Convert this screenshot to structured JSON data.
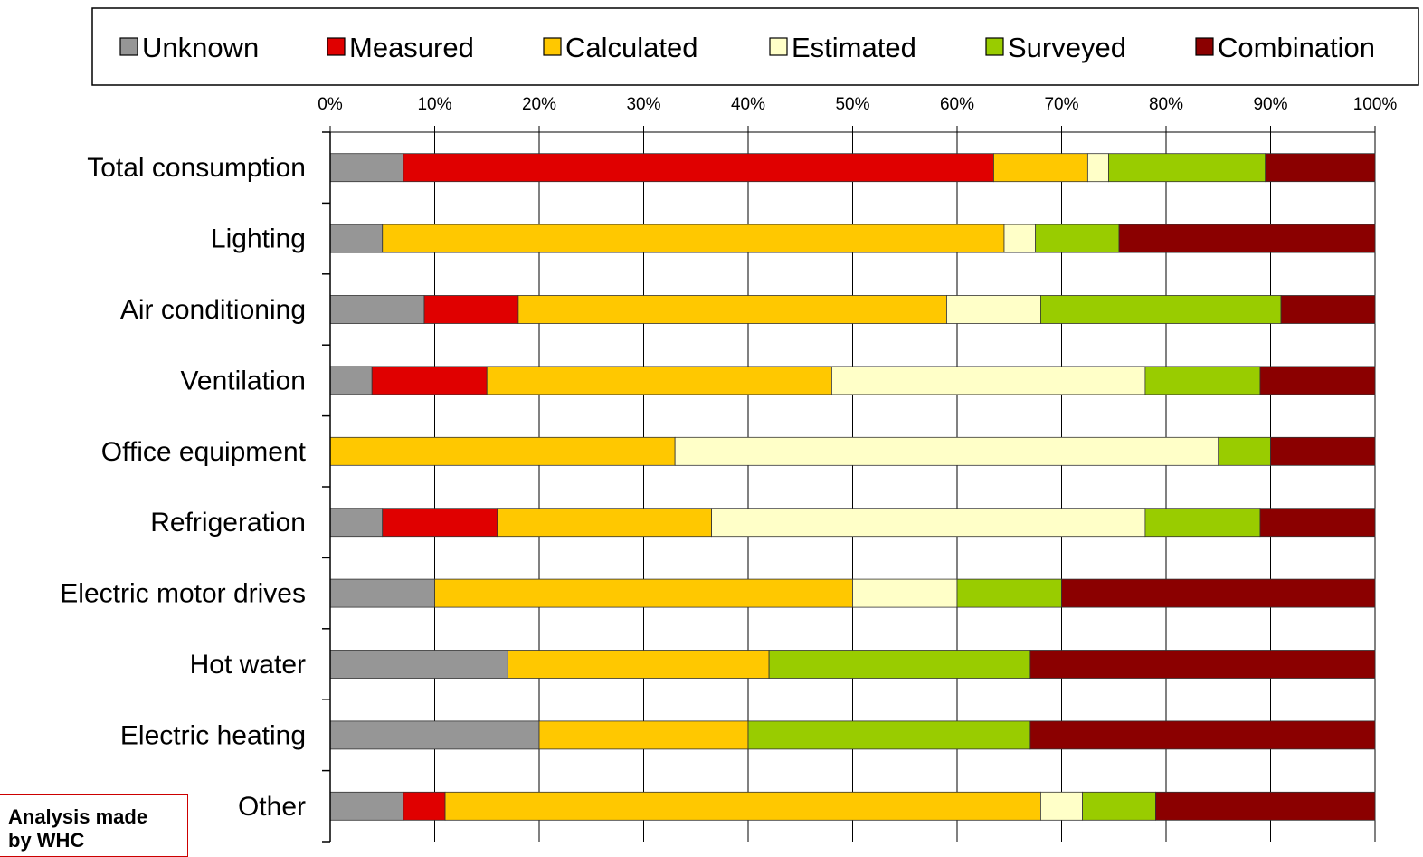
{
  "chart_data": {
    "type": "bar",
    "orientation": "horizontal",
    "stacked": true,
    "percent": true,
    "xlim": [
      0,
      100
    ],
    "x_ticks": [
      "0%",
      "10%",
      "20%",
      "30%",
      "40%",
      "50%",
      "60%",
      "70%",
      "80%",
      "90%",
      "100%"
    ],
    "grid": true,
    "legend_position": "top",
    "categories": [
      "Total consumption",
      "Lighting",
      "Air conditioning",
      "Ventilation",
      "Office equipment",
      "Refrigeration",
      "Electric motor drives",
      "Hot water",
      "Electric heating",
      "Other"
    ],
    "series": [
      {
        "name": "Unknown",
        "color": "#969696",
        "values": [
          7,
          5,
          9,
          4,
          0,
          5,
          10,
          17,
          20,
          7
        ]
      },
      {
        "name": "Measured",
        "color": "#e00000",
        "values": [
          56.5,
          0,
          9,
          11,
          0,
          11,
          0,
          0,
          0,
          4
        ]
      },
      {
        "name": "Calculated",
        "color": "#ffc800",
        "values": [
          9,
          59.5,
          41,
          33,
          33,
          20.5,
          40,
          25,
          20,
          57
        ]
      },
      {
        "name": "Estimated",
        "color": "#ffffc8",
        "values": [
          2,
          3,
          9,
          30,
          52,
          41.5,
          10,
          0,
          0,
          4
        ]
      },
      {
        "name": "Surveyed",
        "color": "#99cc00",
        "values": [
          15,
          8,
          23,
          11,
          5,
          11,
          10,
          25,
          27,
          7
        ]
      },
      {
        "name": "Combination",
        "color": "#8b0000",
        "values": [
          10.5,
          24.5,
          9,
          11,
          10,
          11,
          30,
          33,
          33,
          21
        ]
      }
    ]
  },
  "note": {
    "line1": "Analysis made",
    "line2": "by WHC"
  }
}
